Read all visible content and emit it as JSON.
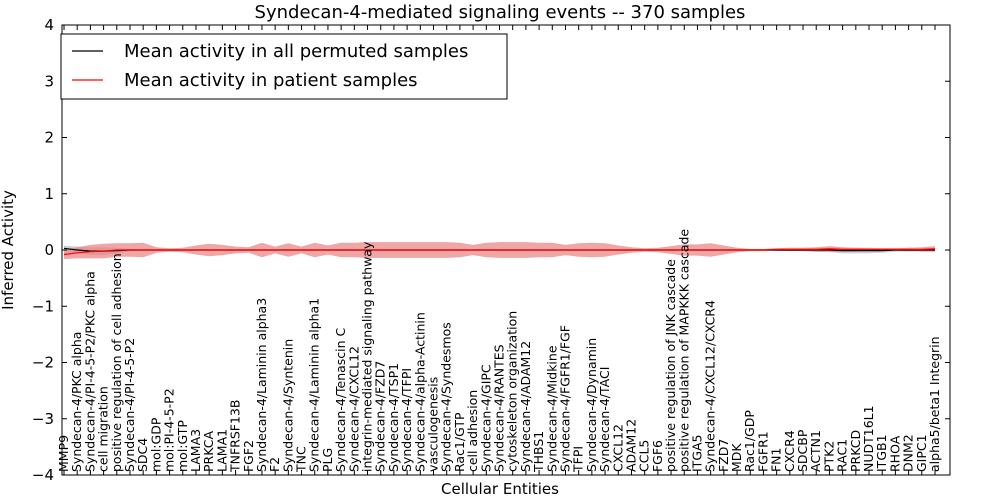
{
  "chart_data": {
    "type": "line",
    "title": "Syndecan-4-mediated signaling events -- 370 samples",
    "xlabel": "Cellular Entities",
    "ylabel": "Inferred Activity",
    "ylim": [
      -4,
      4
    ],
    "yticks": [
      "4",
      "3",
      "2",
      "1",
      "0",
      "−1",
      "−2",
      "−3",
      "−4"
    ],
    "legend": {
      "placement": "top-left",
      "entries": [
        "Mean activity in all permuted samples",
        "Mean activity in patient samples"
      ]
    },
    "categories": [
      "MMP9",
      "Syndecan-4/PKC alpha",
      "Syndecan-4/PI-4-5-P2/PKC alpha",
      "cell migration",
      "positive regulation of cell adhesion",
      "Syndecan-4/PI-4-5-P2",
      "SDC4",
      "mol:GDP",
      "mol:PI-4-5-P2",
      "mol:GTP",
      "LAMA3",
      "PRKCA",
      "LAMA1",
      "TNFRSF13B",
      "FGF2",
      "Syndecan-4/Laminin alpha3",
      "F2",
      "Syndecan-4/Syntenin",
      "TNC",
      "Syndecan-4/Laminin alpha1",
      "PLG",
      "Syndecan-4/Tenascin C",
      "Syndecan-4/CXCL12",
      "integrin-mediated signaling pathway",
      "Syndecan-4/FZD7",
      "Syndecan-4/TSP1",
      "Syndecan-4/TFPI",
      "Syndecan-4/alpha-Actinin",
      "vasculogenesis",
      "Syndecan-4/Syndesmos",
      "Rac1/GTP",
      "cell adhesion",
      "Syndecan-4/GIPC",
      "Syndecan-4/RANTES",
      "cytoskeleton organization",
      "Syndecan-4/ADAM12",
      "THBS1",
      "Syndecan-4/Midkine",
      "Syndecan-4/FGFR1/FGF",
      "TFPI",
      "Syndecan-4/Dynamin",
      "Syndecan-4/TACI",
      "CXCL12",
      "ADAM12",
      "CCL5",
      "FGF6",
      "positive regulation of JNK cascade",
      "positive regulation of MAPKKK cascade",
      "ITGA5",
      "Syndecan-4/CXCL12/CXCR4",
      "FZD7",
      "MDK",
      "Rac1/GDP",
      "FGFR1",
      "FN1",
      "CXCR4",
      "SDCBP",
      "ACTN1",
      "PTK2",
      "RAC1",
      "PRKCD",
      "NUDT16L1",
      "ITGB1",
      "RHOA",
      "DNM2",
      "GIPC1",
      "alpha5/beta1 Integrin"
    ],
    "series": [
      {
        "name": "Mean activity in all permuted samples",
        "color": "#000000",
        "band_color": "#b0b0b0",
        "values": [
          0.03,
          0.0,
          -0.02,
          -0.02,
          -0.01,
          0.0,
          0.0,
          0.0,
          0.0,
          0.0,
          0.0,
          0.0,
          0.0,
          0.0,
          0.0,
          0.0,
          0.0,
          0.0,
          0.0,
          0.0,
          0.0,
          0.0,
          0.0,
          0.0,
          0.0,
          0.0,
          0.0,
          0.0,
          0.0,
          0.0,
          0.0,
          0.0,
          0.0,
          0.0,
          0.0,
          0.0,
          0.0,
          0.0,
          0.0,
          0.0,
          0.0,
          0.0,
          0.0,
          0.0,
          0.0,
          0.0,
          0.0,
          0.0,
          0.0,
          0.0,
          0.0,
          0.0,
          0.0,
          0.0,
          0.0,
          0.0,
          0.0,
          0.0,
          0.0,
          -0.01,
          -0.01,
          -0.01,
          -0.01,
          0.0,
          0.0,
          0.0,
          0.0
        ],
        "spread": [
          0.05,
          0.06,
          0.07,
          0.07,
          0.05,
          0.02,
          0.01,
          0.01,
          0.01,
          0.01,
          0.01,
          0.01,
          0.01,
          0.01,
          0.01,
          0.01,
          0.01,
          0.01,
          0.01,
          0.01,
          0.01,
          0.01,
          0.01,
          0.01,
          0.01,
          0.01,
          0.01,
          0.01,
          0.01,
          0.01,
          0.01,
          0.01,
          0.01,
          0.01,
          0.01,
          0.01,
          0.01,
          0.01,
          0.01,
          0.01,
          0.01,
          0.01,
          0.01,
          0.01,
          0.01,
          0.01,
          0.01,
          0.01,
          0.01,
          0.01,
          0.01,
          0.01,
          0.01,
          0.01,
          0.02,
          0.02,
          0.02,
          0.03,
          0.04,
          0.05,
          0.05,
          0.05,
          0.04,
          0.03,
          0.03,
          0.02,
          0.02
        ]
      },
      {
        "name": "Mean activity in patient samples",
        "color": "#ff0000",
        "band_color": "#e88080",
        "values": [
          -0.08,
          -0.05,
          -0.03,
          -0.02,
          0.0,
          0.0,
          0.0,
          0.0,
          0.0,
          0.0,
          0.0,
          0.0,
          0.0,
          0.0,
          0.0,
          0.0,
          0.0,
          0.0,
          0.0,
          0.0,
          0.0,
          0.0,
          0.0,
          0.0,
          0.0,
          0.0,
          0.0,
          0.0,
          0.0,
          0.0,
          0.0,
          0.0,
          0.0,
          0.0,
          0.0,
          0.0,
          0.0,
          0.0,
          0.0,
          0.0,
          0.0,
          0.0,
          0.0,
          0.0,
          0.0,
          0.0,
          0.0,
          0.0,
          0.0,
          0.0,
          0.0,
          0.0,
          0.0,
          0.0,
          0.01,
          0.01,
          0.01,
          0.01,
          0.02,
          0.01,
          0.01,
          0.01,
          0.01,
          0.01,
          0.01,
          0.01,
          0.02
        ],
        "spread": [
          0.08,
          0.1,
          0.12,
          0.13,
          0.12,
          0.12,
          0.13,
          0.05,
          0.03,
          0.04,
          0.08,
          0.11,
          0.09,
          0.06,
          0.05,
          0.13,
          0.06,
          0.12,
          0.06,
          0.13,
          0.08,
          0.13,
          0.13,
          0.14,
          0.14,
          0.14,
          0.14,
          0.14,
          0.14,
          0.14,
          0.13,
          0.09,
          0.13,
          0.14,
          0.14,
          0.14,
          0.13,
          0.13,
          0.09,
          0.12,
          0.13,
          0.12,
          0.08,
          0.05,
          0.03,
          0.04,
          0.07,
          0.1,
          0.1,
          0.12,
          0.08,
          0.04,
          0.02,
          0.02,
          0.02,
          0.03,
          0.03,
          0.04,
          0.05,
          0.04,
          0.03,
          0.02,
          0.02,
          0.02,
          0.03,
          0.04,
          0.05
        ]
      }
    ]
  }
}
